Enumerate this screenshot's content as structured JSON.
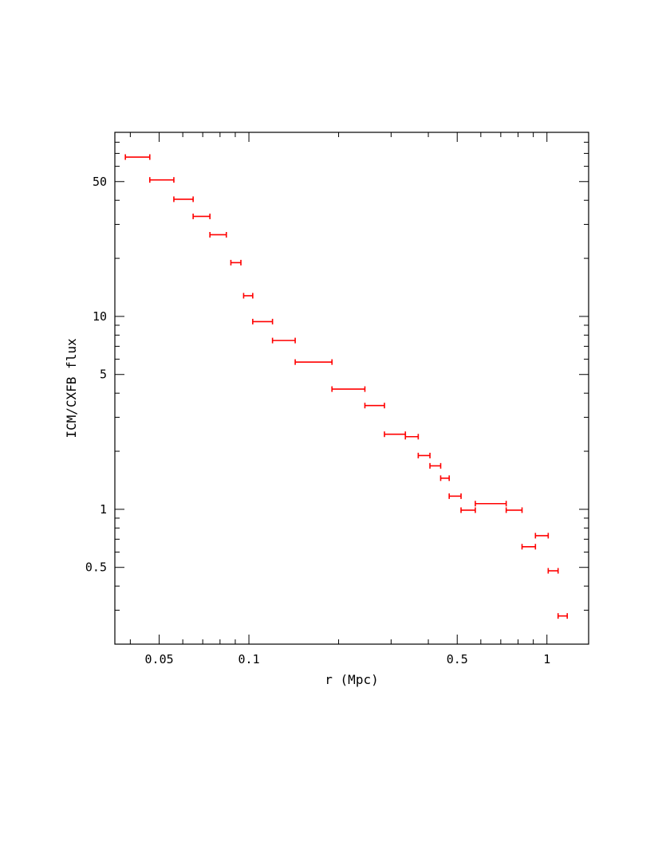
{
  "chart_data": {
    "type": "scatter",
    "xlabel": "r (Mpc)",
    "ylabel": "ICM/CXFB flux",
    "xscale": "log",
    "yscale": "log",
    "xlim": [
      0.0355,
      1.38
    ],
    "ylim": [
      0.2,
      90
    ],
    "grid": false,
    "x_ticks": [
      {
        "value": 0.05,
        "label": "0.05"
      },
      {
        "value": 0.1,
        "label": "0.1"
      },
      {
        "value": 0.5,
        "label": "0.5"
      },
      {
        "value": 1,
        "label": "1"
      }
    ],
    "y_ticks": [
      {
        "value": 0.5,
        "label": "0.5"
      },
      {
        "value": 1,
        "label": "1"
      },
      {
        "value": 5,
        "label": "5"
      },
      {
        "value": 10,
        "label": "10"
      },
      {
        "value": 50,
        "label": "50"
      }
    ],
    "series": [
      {
        "color": "#ff0000",
        "marker": "horizontal-errorbar",
        "points": [
          {
            "x_low": 0.0385,
            "x_high": 0.0465,
            "y": 67
          },
          {
            "x_low": 0.0465,
            "x_high": 0.056,
            "y": 51
          },
          {
            "x_low": 0.056,
            "x_high": 0.065,
            "y": 40.5
          },
          {
            "x_low": 0.065,
            "x_high": 0.074,
            "y": 33
          },
          {
            "x_low": 0.074,
            "x_high": 0.084,
            "y": 26.5
          },
          {
            "x_low": 0.087,
            "x_high": 0.094,
            "y": 19
          },
          {
            "x_low": 0.096,
            "x_high": 0.103,
            "y": 12.8
          },
          {
            "x_low": 0.103,
            "x_high": 0.12,
            "y": 9.4
          },
          {
            "x_low": 0.12,
            "x_high": 0.143,
            "y": 7.5
          },
          {
            "x_low": 0.143,
            "x_high": 0.19,
            "y": 5.8
          },
          {
            "x_low": 0.19,
            "x_high": 0.245,
            "y": 4.2
          },
          {
            "x_low": 0.245,
            "x_high": 0.285,
            "y": 3.45
          },
          {
            "x_low": 0.285,
            "x_high": 0.335,
            "y": 2.45
          },
          {
            "x_low": 0.335,
            "x_high": 0.37,
            "y": 2.38
          },
          {
            "x_low": 0.37,
            "x_high": 0.405,
            "y": 1.9
          },
          {
            "x_low": 0.405,
            "x_high": 0.44,
            "y": 1.68
          },
          {
            "x_low": 0.44,
            "x_high": 0.47,
            "y": 1.45
          },
          {
            "x_low": 0.47,
            "x_high": 0.515,
            "y": 1.17
          },
          {
            "x_low": 0.515,
            "x_high": 0.575,
            "y": 0.99
          },
          {
            "x_low": 0.575,
            "x_high": 0.73,
            "y": 1.07
          },
          {
            "x_low": 0.73,
            "x_high": 0.825,
            "y": 0.99
          },
          {
            "x_low": 0.825,
            "x_high": 0.915,
            "y": 0.64
          },
          {
            "x_low": 0.915,
            "x_high": 1.01,
            "y": 0.73
          },
          {
            "x_low": 1.01,
            "x_high": 1.09,
            "y": 0.48
          },
          {
            "x_low": 1.09,
            "x_high": 1.17,
            "y": 0.28
          }
        ]
      }
    ]
  }
}
